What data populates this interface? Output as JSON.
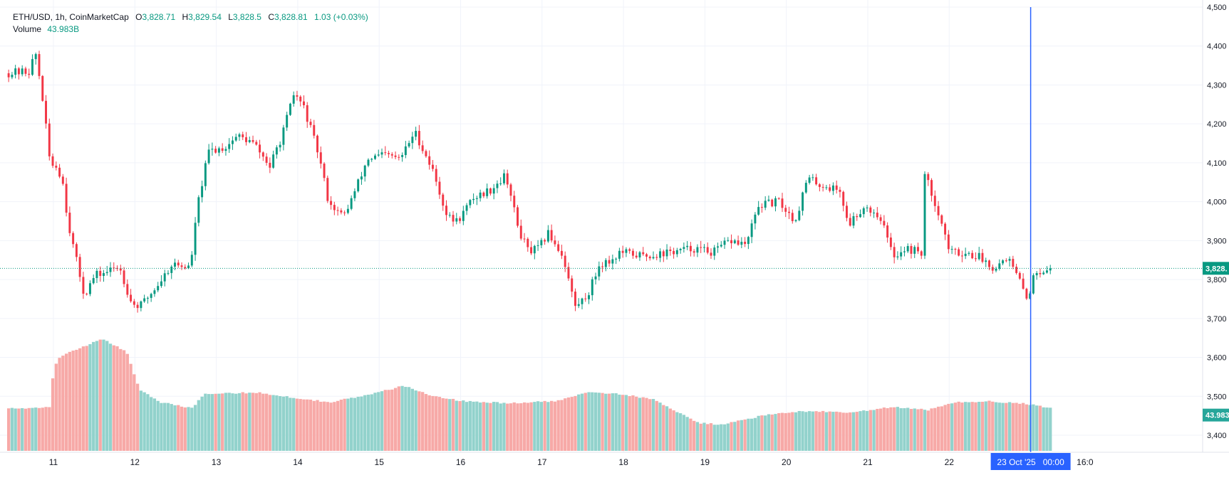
{
  "chart_data": {
    "type": "candlestick",
    "symbol": "ETH/USD",
    "interval": "1h",
    "source": "CoinMarketCap",
    "ohlc": {
      "open": "3,828.71",
      "high": "3,829.54",
      "low": "3,828.5",
      "close": "3,828.81",
      "change": "1.03 (+0.03%)"
    },
    "volume_label": "Volume",
    "volume_value": "43.983B",
    "price_badge": "3,828.",
    "volume_badge": "43.983",
    "crosshair_label": "23 Oct '25   00:00",
    "x_tick_labels": [
      {
        "label": "11",
        "day": 11
      },
      {
        "label": "12",
        "day": 12
      },
      {
        "label": "13",
        "day": 13
      },
      {
        "label": "14",
        "day": 14
      },
      {
        "label": "15",
        "day": 15
      },
      {
        "label": "16",
        "day": 16
      },
      {
        "label": "17",
        "day": 17
      },
      {
        "label": "18",
        "day": 18
      },
      {
        "label": "19",
        "day": 19
      },
      {
        "label": "20",
        "day": 20
      },
      {
        "label": "21",
        "day": 21
      },
      {
        "label": "22",
        "day": 22
      },
      {
        "label": "16:0",
        "day": 23.667
      }
    ],
    "y_ticks": [
      {
        "label": "4,500",
        "value": 4500
      },
      {
        "label": "4,400",
        "value": 4400
      },
      {
        "label": "4,300",
        "value": 4300
      },
      {
        "label": "4,200",
        "value": 4200
      },
      {
        "label": "4,100",
        "value": 4100
      },
      {
        "label": "4,000",
        "value": 4000
      },
      {
        "label": "3,900",
        "value": 3900
      },
      {
        "label": "3,800",
        "value": 3800
      },
      {
        "label": "3,700",
        "value": 3700
      },
      {
        "label": "3,600",
        "value": 3600
      },
      {
        "label": "3,500",
        "value": 3500
      },
      {
        "label": "3,400",
        "value": 3400
      }
    ],
    "y_range": [
      3370,
      4500
    ],
    "x_range_days": [
      10.45,
      24.1
    ],
    "current_price": 3828.81,
    "crosshair_day": 23.0,
    "colors": {
      "up": "#089981",
      "down": "#f23645",
      "vol_up": "#92d2cc",
      "vol_down": "#f7a9a7",
      "crosshair": "#2962ff",
      "grid": "#f0f3fa"
    },
    "price_anchors": [
      [
        10.45,
        4330
      ],
      [
        10.75,
        4335
      ],
      [
        10.82,
        4385
      ],
      [
        10.9,
        4280
      ],
      [
        11.0,
        4100
      ],
      [
        11.08,
        4090
      ],
      [
        11.15,
        4060
      ],
      [
        11.22,
        3950
      ],
      [
        11.3,
        3870
      ],
      [
        11.42,
        3760
      ],
      [
        11.55,
        3810
      ],
      [
        11.7,
        3820
      ],
      [
        11.85,
        3835
      ],
      [
        12.0,
        3740
      ],
      [
        12.1,
        3730
      ],
      [
        12.3,
        3780
      ],
      [
        12.5,
        3840
      ],
      [
        12.72,
        3830
      ],
      [
        12.82,
        4000
      ],
      [
        12.95,
        4130
      ],
      [
        13.15,
        4140
      ],
      [
        13.3,
        4170
      ],
      [
        13.5,
        4150
      ],
      [
        13.7,
        4090
      ],
      [
        13.85,
        4170
      ],
      [
        14.0,
        4280
      ],
      [
        14.12,
        4240
      ],
      [
        14.3,
        4120
      ],
      [
        14.42,
        4000
      ],
      [
        14.6,
        3960
      ],
      [
        14.75,
        4030
      ],
      [
        14.9,
        4110
      ],
      [
        15.1,
        4120
      ],
      [
        15.3,
        4110
      ],
      [
        15.48,
        4180
      ],
      [
        15.7,
        4080
      ],
      [
        15.88,
        3960
      ],
      [
        16.0,
        3950
      ],
      [
        16.2,
        4010
      ],
      [
        16.4,
        4030
      ],
      [
        16.6,
        4070
      ],
      [
        16.75,
        3930
      ],
      [
        16.88,
        3870
      ],
      [
        17.0,
        3880
      ],
      [
        17.12,
        3920
      ],
      [
        17.3,
        3860
      ],
      [
        17.45,
        3730
      ],
      [
        17.6,
        3760
      ],
      [
        17.75,
        3840
      ],
      [
        17.9,
        3850
      ],
      [
        18.0,
        3870
      ],
      [
        18.3,
        3860
      ],
      [
        18.6,
        3870
      ],
      [
        18.9,
        3880
      ],
      [
        19.15,
        3870
      ],
      [
        19.35,
        3900
      ],
      [
        19.55,
        3890
      ],
      [
        19.7,
        3990
      ],
      [
        19.95,
        4000
      ],
      [
        20.15,
        3950
      ],
      [
        20.3,
        4060
      ],
      [
        20.5,
        4040
      ],
      [
        20.7,
        4030
      ],
      [
        20.8,
        3940
      ],
      [
        21.0,
        3990
      ],
      [
        21.2,
        3960
      ],
      [
        21.35,
        3860
      ],
      [
        21.5,
        3880
      ],
      [
        21.7,
        3870
      ],
      [
        21.72,
        4080
      ],
      [
        21.9,
        3980
      ],
      [
        22.05,
        3870
      ],
      [
        22.2,
        3870
      ],
      [
        22.4,
        3860
      ],
      [
        22.6,
        3830
      ],
      [
        22.75,
        3860
      ],
      [
        22.92,
        3790
      ],
      [
        23.0,
        3750
      ],
      [
        23.1,
        3820
      ],
      [
        23.25,
        3830
      ]
    ],
    "volume_anchors": [
      [
        10.45,
        3468
      ],
      [
        10.95,
        3472
      ],
      [
        11.0,
        3560
      ],
      [
        11.05,
        3598
      ],
      [
        11.3,
        3622
      ],
      [
        11.6,
        3648
      ],
      [
        11.9,
        3615
      ],
      [
        12.05,
        3520
      ],
      [
        12.3,
        3485
      ],
      [
        12.7,
        3470
      ],
      [
        12.85,
        3505
      ],
      [
        13.5,
        3510
      ],
      [
        14.0,
        3495
      ],
      [
        14.4,
        3485
      ],
      [
        14.9,
        3505
      ],
      [
        15.3,
        3527
      ],
      [
        15.6,
        3505
      ],
      [
        16.0,
        3488
      ],
      [
        16.6,
        3482
      ],
      [
        17.2,
        3488
      ],
      [
        17.55,
        3512
      ],
      [
        18.0,
        3505
      ],
      [
        18.4,
        3490
      ],
      [
        18.9,
        3432
      ],
      [
        19.2,
        3427
      ],
      [
        19.7,
        3450
      ],
      [
        20.2,
        3462
      ],
      [
        20.8,
        3458
      ],
      [
        21.3,
        3472
      ],
      [
        21.75,
        3465
      ],
      [
        22.1,
        3485
      ],
      [
        22.5,
        3487
      ],
      [
        22.9,
        3482
      ],
      [
        23.25,
        3470
      ]
    ]
  }
}
